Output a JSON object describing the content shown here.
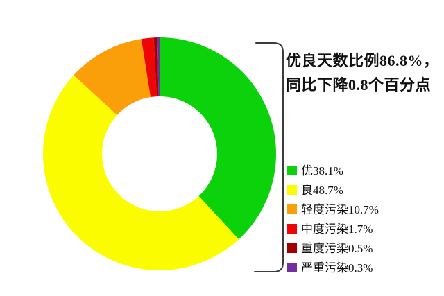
{
  "page": {
    "background": "#ffffff",
    "bracket_color": "#3c3c3c"
  },
  "annotation": {
    "line1": "优良天数比例86.8%，",
    "line2": "同比下降0.8个百分点"
  },
  "chart_data": {
    "type": "pie",
    "subtype": "donut",
    "title": "",
    "start_angle": "top",
    "direction": "clockwise",
    "legend_position": "right",
    "categories": [
      "优",
      "良",
      "轻度污染",
      "中度污染",
      "重度污染",
      "严重污染"
    ],
    "values": [
      38.1,
      48.7,
      10.7,
      1.7,
      0.5,
      0.3
    ],
    "colors": [
      "#0bd20b",
      "#fcfc00",
      "#fa9e0a",
      "#ee0505",
      "#a40000",
      "#7030a0"
    ],
    "legend_labels": [
      "优38.1%",
      "良48.7%",
      "轻度污染10.7%",
      "中度污染1.7%",
      "重度污染0.5%",
      "严重污染0.3%"
    ]
  }
}
